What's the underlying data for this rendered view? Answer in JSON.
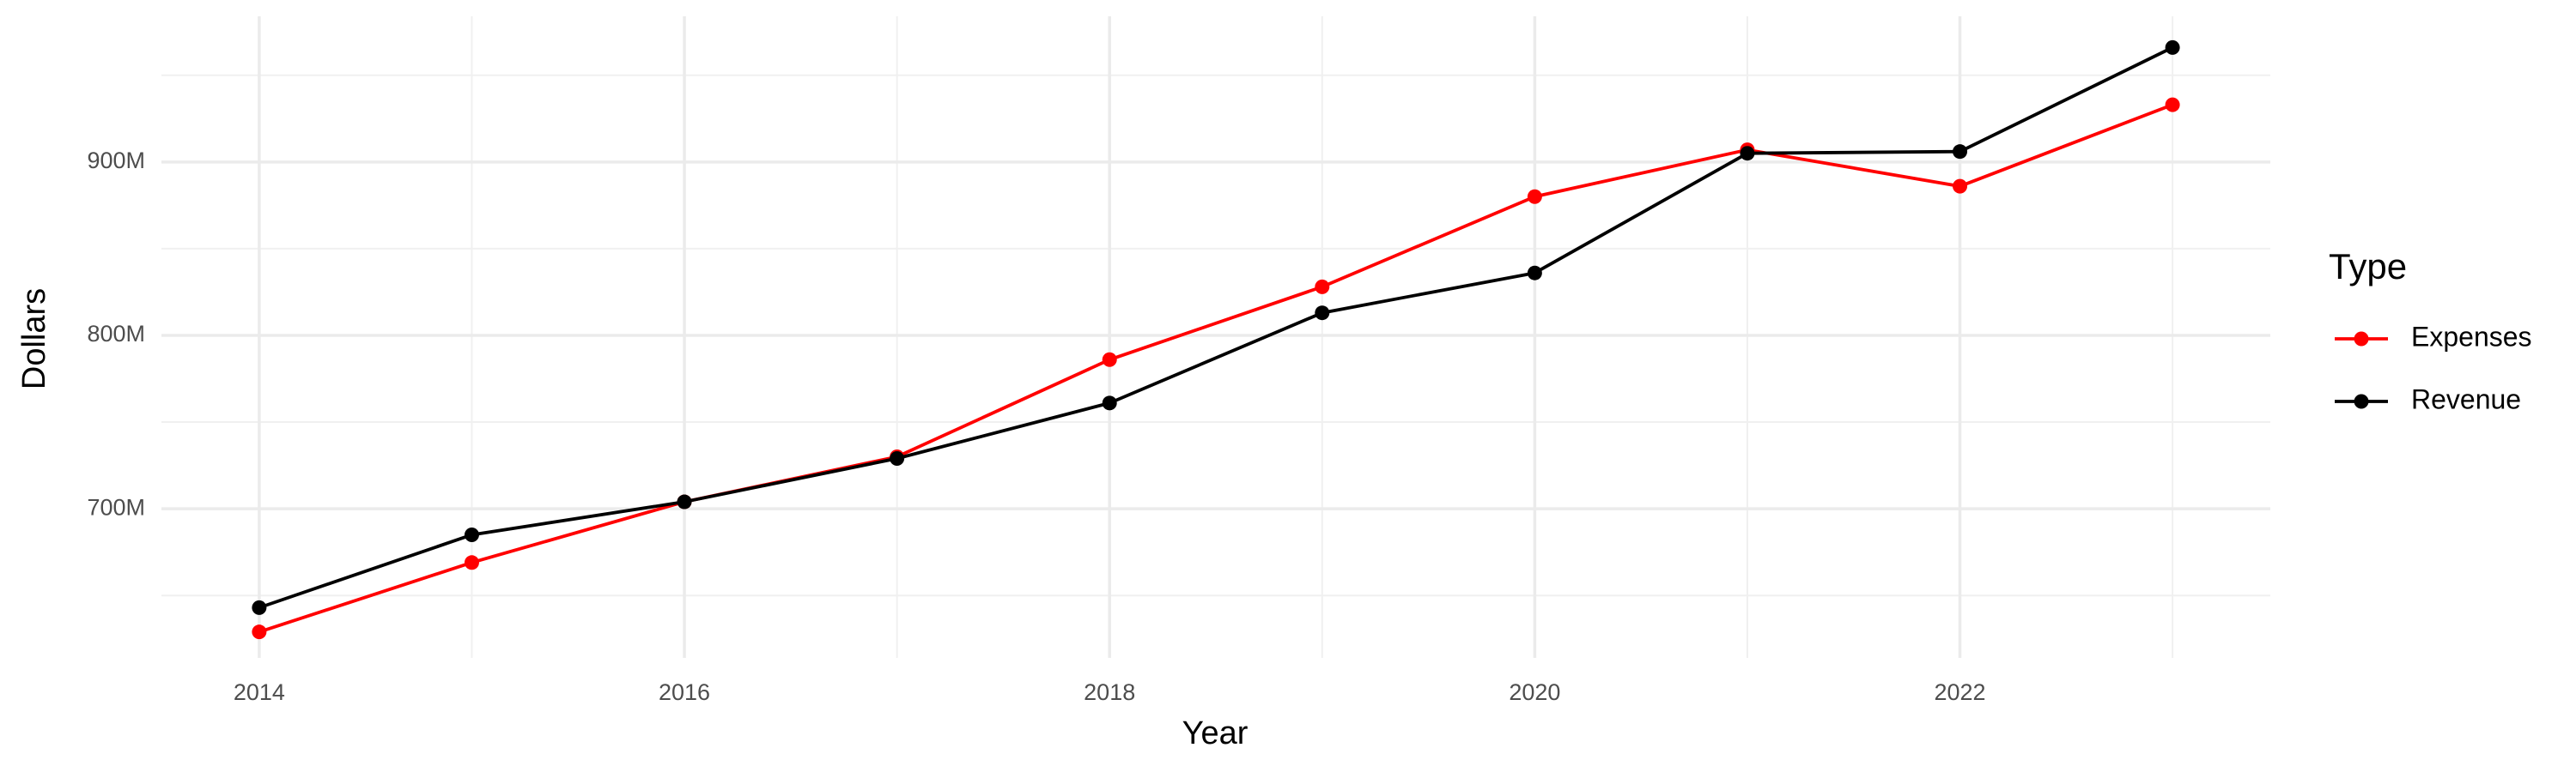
{
  "chart_data": {
    "type": "line",
    "x_label": "Year",
    "y_label": "Dollars",
    "legend_title": "Type",
    "x": [
      2014,
      2015,
      2016,
      2017,
      2018,
      2019,
      2020,
      2021,
      2022,
      2023
    ],
    "series": [
      {
        "name": "Expenses",
        "color": "#ff0000",
        "values": [
          629000000,
          669000000,
          704000000,
          730000000,
          786000000,
          828000000,
          880000000,
          907000000,
          886000000,
          933000000
        ]
      },
      {
        "name": "Revenue",
        "color": "#000000",
        "values": [
          643000000,
          685000000,
          704000000,
          729000000,
          761000000,
          813000000,
          836000000,
          905000000,
          906000000,
          966000000
        ]
      }
    ],
    "xlim": [
      2013.54,
      2023.46
    ],
    "xticks": [
      2014,
      2016,
      2018,
      2020,
      2022
    ],
    "x_minor_grid": [
      2015,
      2017,
      2019,
      2021,
      2023
    ],
    "ylim": [
      614000000,
      984000000
    ],
    "yticks": [
      {
        "value": 700000000,
        "label": "700M"
      },
      {
        "value": 800000000,
        "label": "800M"
      },
      {
        "value": 900000000,
        "label": "900M"
      }
    ],
    "y_minor_grid": [
      650000000,
      750000000,
      850000000,
      950000000
    ],
    "grid": true,
    "legend_position": "right"
  }
}
